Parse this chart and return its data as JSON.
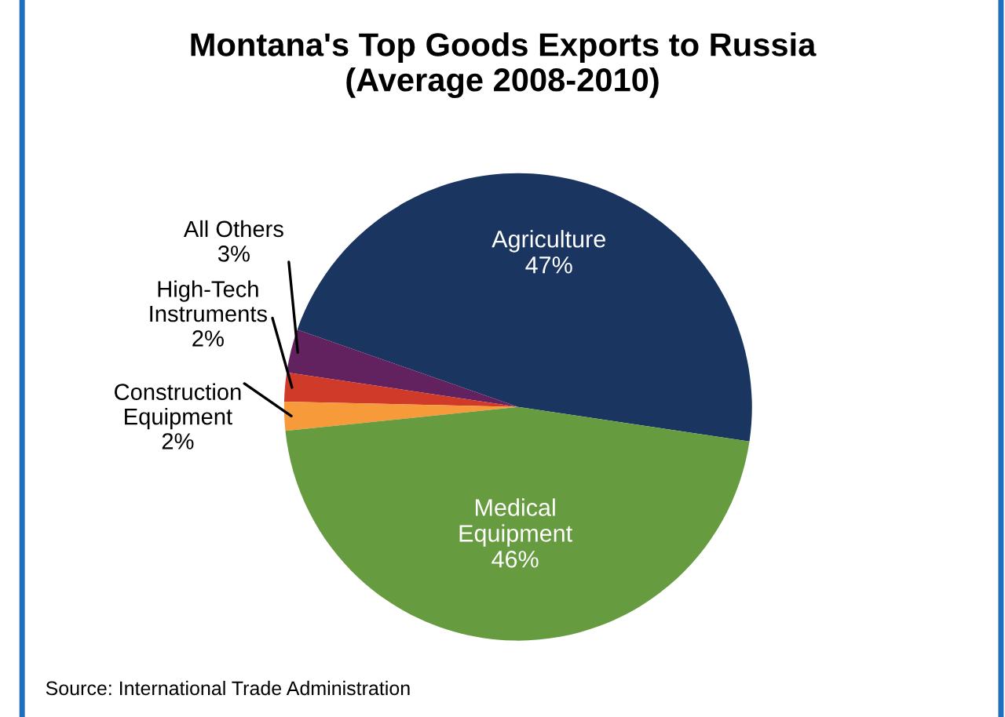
{
  "chart_data": {
    "type": "pie",
    "title": "Montana's Top Goods Exports to Russia\n(Average 2008-2010)",
    "categories": [
      "Agriculture",
      "All Others",
      "High-Tech\nInstruments",
      "Construction\nEquipment",
      "Medical\nEquipment"
    ],
    "values": [
      47,
      3,
      2,
      2,
      46
    ],
    "colors": [
      "#1b3561",
      "#61225f",
      "#d03a28",
      "#f79a3a",
      "#679b40"
    ],
    "value_labels": [
      "47%",
      "3%",
      "2%",
      "2%",
      "46%"
    ],
    "annotations": [
      "Source: International Trade Administration"
    ],
    "legend": false
  }
}
